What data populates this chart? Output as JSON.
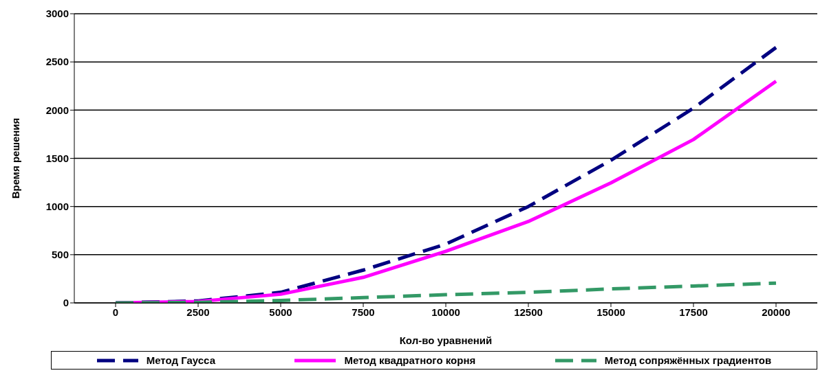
{
  "chart_data": {
    "type": "line",
    "xlabel": "Кол-во уравнений",
    "ylabel": "Время решения",
    "categories": [
      "0",
      "2500",
      "5000",
      "7500",
      "10000",
      "12500",
      "15000",
      "17500",
      "20000"
    ],
    "ylim": [
      0,
      3000
    ],
    "yticks": [
      0,
      500,
      1000,
      1500,
      2000,
      2500,
      3000
    ],
    "grid": "y",
    "legend": "bottom",
    "marker": "none",
    "series": [
      {
        "name": "Метод Гаусса",
        "color": "#000080",
        "line_style": "dashed",
        "values": [
          0,
          20,
          110,
          340,
          610,
          1000,
          1480,
          2020,
          2650
        ]
      },
      {
        "name": "Метод квадратного корня",
        "color": "#ff00ff",
        "line_style": "solid",
        "values": [
          0,
          15,
          90,
          265,
          535,
          845,
          1245,
          1695,
          2300
        ]
      },
      {
        "name": "Метод сопряжённых градиентов",
        "color": "#339966",
        "line_style": "dashed",
        "values": [
          0,
          5,
          25,
          55,
          85,
          110,
          145,
          175,
          205
        ]
      }
    ]
  }
}
